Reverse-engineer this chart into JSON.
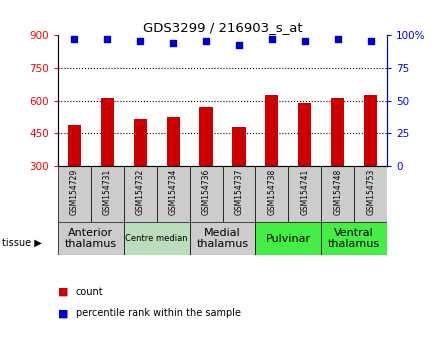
{
  "title": "GDS3299 / 216903_s_at",
  "samples": [
    "GSM154729",
    "GSM154731",
    "GSM154732",
    "GSM154734",
    "GSM154736",
    "GSM154737",
    "GSM154738",
    "GSM154741",
    "GSM154748",
    "GSM154753"
  ],
  "counts": [
    490,
    615,
    515,
    525,
    570,
    480,
    625,
    590,
    615,
    625
  ],
  "percentile_ranks": [
    97,
    97,
    96,
    94,
    96,
    93,
    97,
    96,
    97,
    96
  ],
  "ymin": 300,
  "ymax": 900,
  "yticks": [
    300,
    450,
    600,
    750,
    900
  ],
  "yright_ticks": [
    0,
    25,
    50,
    75,
    100
  ],
  "bar_color": "#cc0000",
  "dot_color": "#0000cc",
  "tissue_groups": [
    {
      "label": "Anterior\nthalamus",
      "start": 0,
      "end": 2,
      "color": "#cccccc",
      "fontsize": 8
    },
    {
      "label": "Centre median",
      "start": 2,
      "end": 4,
      "color": "#bbddbb",
      "fontsize": 6
    },
    {
      "label": "Medial\nthalamus",
      "start": 4,
      "end": 6,
      "color": "#cccccc",
      "fontsize": 8
    },
    {
      "label": "Pulvinar",
      "start": 6,
      "end": 8,
      "color": "#44ee44",
      "fontsize": 8
    },
    {
      "label": "Ventral\nthalamus",
      "start": 8,
      "end": 10,
      "color": "#44ee44",
      "fontsize": 8
    }
  ],
  "grid_color": "#000000",
  "background_color": "#ffffff",
  "gsm_box_color": "#cccccc",
  "bar_width": 0.4
}
